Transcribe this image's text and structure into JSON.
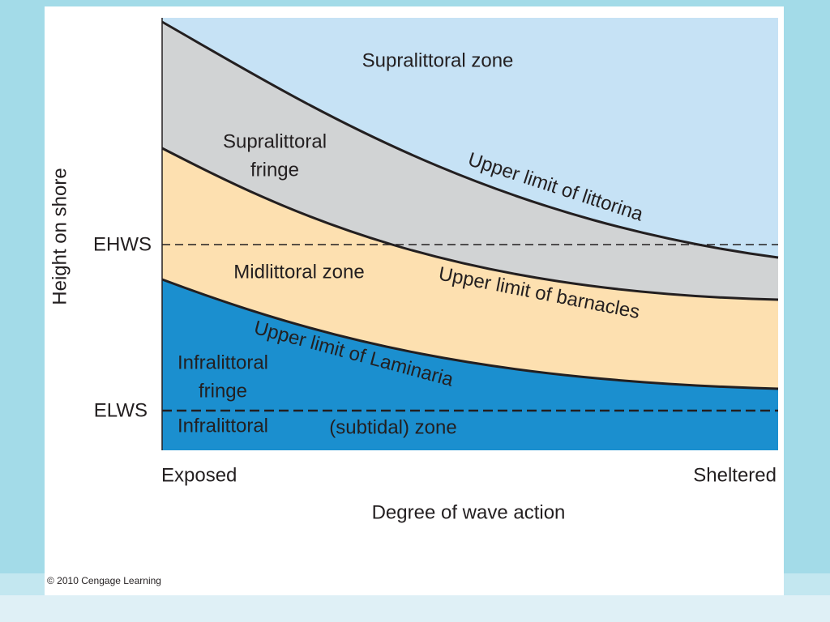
{
  "diagram": {
    "y_axis_label": "Height on shore",
    "x_axis_label": "Degree of wave action",
    "x_left": "Exposed",
    "x_right": "Sheltered",
    "levels": [
      "EHWS",
      "ELWS"
    ],
    "zones": [
      {
        "lines": [
          "Supralittoral zone"
        ]
      },
      {
        "lines": [
          "Supralittoral",
          "fringe"
        ]
      },
      {
        "lines": [
          "Midlittoral zone"
        ]
      },
      {
        "lines": [
          "Infralittoral",
          "fringe"
        ]
      },
      {
        "lines": [
          "Infralittoral",
          "(subtidal) zone"
        ]
      }
    ],
    "limits": [
      "Upper limit of littorina",
      "Upper limit of barnacles",
      "Upper limit of Laminaria"
    ],
    "copyright": "© 2010 Cengage Learning"
  }
}
